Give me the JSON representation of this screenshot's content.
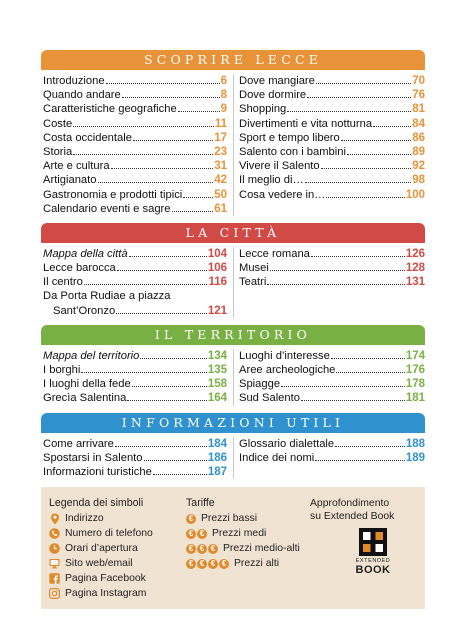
{
  "colors": {
    "orange": "#e8923a",
    "red": "#d24a45",
    "green": "#79b044",
    "blue": "#2f92cf",
    "legend_bg": "#f1e3d2",
    "coin": "#e08a2c"
  },
  "sections": [
    {
      "title": "SCOPRIRE LECCE",
      "color": "#e8923a",
      "left": [
        {
          "label": "Introduzione",
          "page": "6"
        },
        {
          "label": "Quando andare",
          "page": "8"
        },
        {
          "label": "Caratteristiche geografiche",
          "page": "9"
        },
        {
          "label": "Coste",
          "page": "11"
        },
        {
          "label": "Costa occidentale",
          "page": "17"
        },
        {
          "label": "Storia",
          "page": "23"
        },
        {
          "label": "Arte e cultura",
          "page": "31"
        },
        {
          "label": "Artigianato",
          "page": "42"
        },
        {
          "label": "Gastronomia e prodotti tipici",
          "page": "50"
        },
        {
          "label": "Calendario eventi e sagre",
          "page": "61"
        }
      ],
      "right": [
        {
          "label": "Dove mangiare",
          "page": "70"
        },
        {
          "label": "Dove dormire",
          "page": "76"
        },
        {
          "label": "Shopping",
          "page": "81"
        },
        {
          "label": "Divertimenti e vita notturna",
          "page": "84"
        },
        {
          "label": "Sport e tempo libero",
          "page": "86"
        },
        {
          "label": "Salento con i bambini",
          "page": "89"
        },
        {
          "label": "Vivere il Salento",
          "page": "92"
        },
        {
          "label": "Il meglio di…",
          "page": "98"
        },
        {
          "label": "Cosa vedere in…",
          "page": "100"
        }
      ]
    },
    {
      "title": "LA CITTÀ",
      "color": "#d24a45",
      "left": [
        {
          "label": "Mappa della città",
          "page": "104",
          "italic": true
        },
        {
          "label": "Lecce barocca",
          "page": "106"
        },
        {
          "label": "Il centro",
          "page": "116"
        },
        {
          "label": "Da Porta Rudiae a piazza",
          "page": "",
          "plain": true
        },
        {
          "label": "Sant’Oronzo",
          "page": "121",
          "cont": true
        }
      ],
      "right": [
        {
          "label": "Lecce romana",
          "page": "126"
        },
        {
          "label": "Musei",
          "page": "128"
        },
        {
          "label": "Teatri",
          "page": "131"
        }
      ]
    },
    {
      "title": "IL TERRITORIO",
      "color": "#79b044",
      "left": [
        {
          "label": "Mappa del territorio",
          "page": "134",
          "italic": true
        },
        {
          "label": "I borghi",
          "page": "135"
        },
        {
          "label": "I luoghi della fede",
          "page": "158"
        },
        {
          "label": "Grecìa Salentina",
          "page": "164"
        }
      ],
      "right": [
        {
          "label": "Luoghi d’interesse",
          "page": "174"
        },
        {
          "label": "Aree archeologiche",
          "page": "176"
        },
        {
          "label": "Spiagge",
          "page": "178"
        },
        {
          "label": "Sud Salento",
          "page": "181"
        }
      ]
    },
    {
      "title": "INFORMAZIONI UTILI",
      "color": "#2f92cf",
      "left": [
        {
          "label": "Come arrivare",
          "page": "184"
        },
        {
          "label": "Spostarsi in Salento",
          "page": "186"
        },
        {
          "label": "Informazioni turistiche",
          "page": "187"
        }
      ],
      "right": [
        {
          "label": "Glossario dialettale",
          "page": "188"
        },
        {
          "label": "Indice dei nomi",
          "page": "189"
        }
      ]
    }
  ],
  "legend": {
    "symbols_title": "Legenda dei simboli",
    "symbols": [
      {
        "icon": "map-pin-icon",
        "label": "Indirizzo"
      },
      {
        "icon": "phone-icon",
        "label": "Numero di telefono"
      },
      {
        "icon": "clock-icon",
        "label": "Orari d’apertura"
      },
      {
        "icon": "monitor-icon",
        "label": "Sito web/email"
      },
      {
        "icon": "facebook-icon",
        "label": "Pagina Facebook"
      },
      {
        "icon": "instagram-icon",
        "label": "Pagina Instagram"
      }
    ],
    "tariffs_title": "Tariffe",
    "coin_symbol": "€",
    "tariffs": [
      {
        "coins": 1,
        "label": "Prezzi bassi"
      },
      {
        "coins": 2,
        "label": "Prezzi medi"
      },
      {
        "coins": 3,
        "label": "Prezzi medio-alti"
      },
      {
        "coins": 4,
        "label": "Prezzi alti"
      }
    ],
    "extended_line1": "Approfondimento",
    "extended_line2": "su Extended Book",
    "logo_top": "EXTENDED",
    "logo_bottom": "BOOK"
  }
}
